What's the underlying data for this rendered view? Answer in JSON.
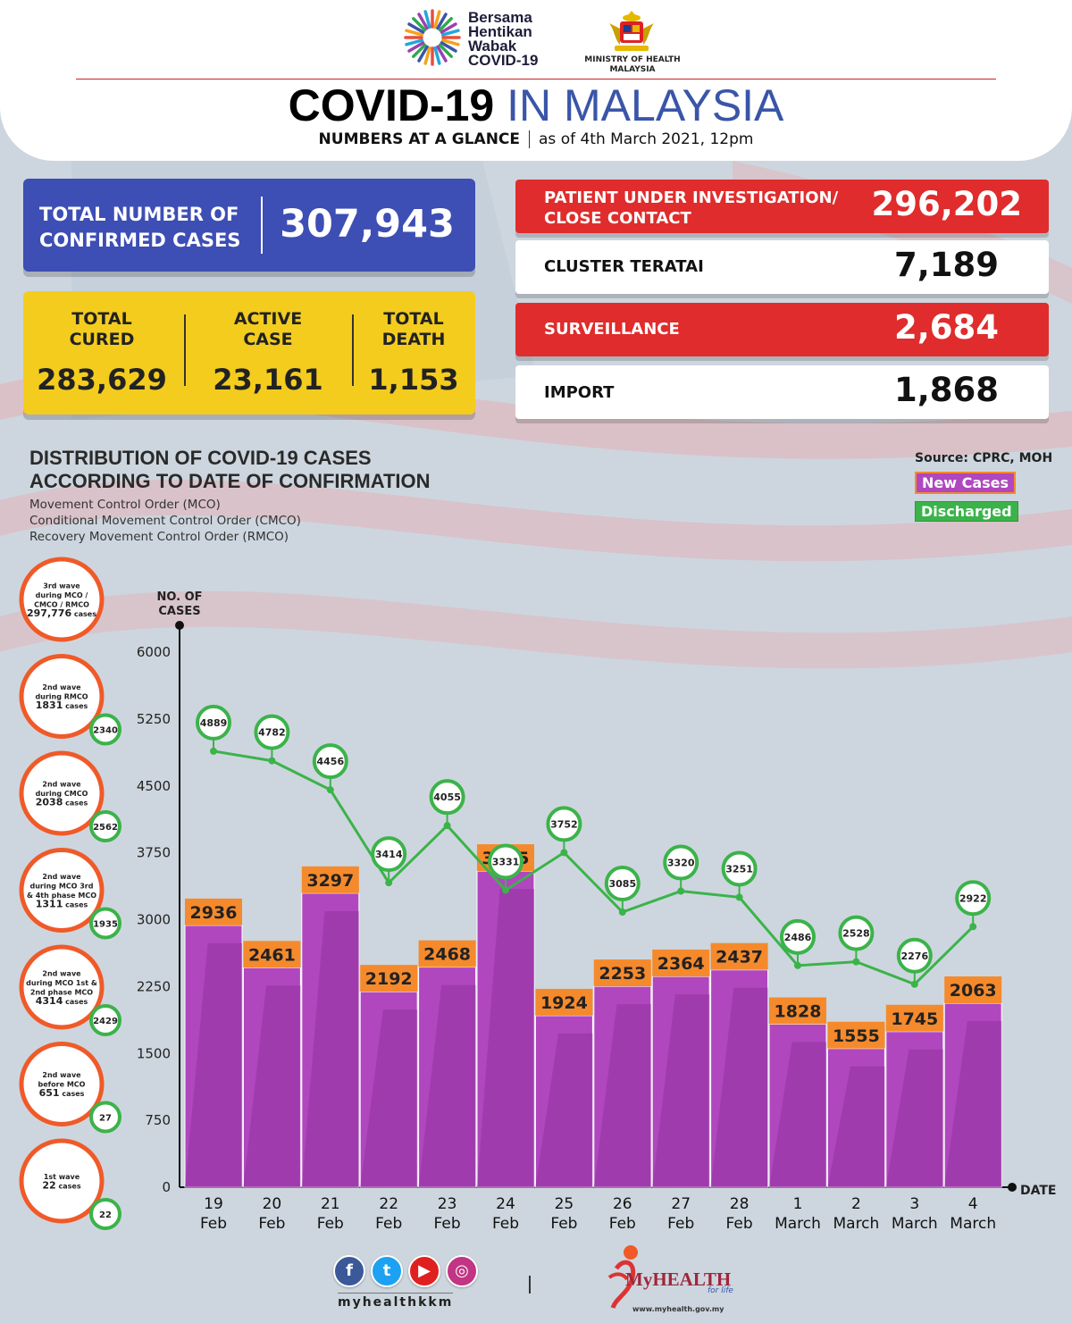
{
  "header": {
    "campaign_lines": [
      "Bersama",
      "Hentikan",
      "Wabak",
      "COVID-19"
    ],
    "ministry": "MINISTRY OF HEALTH MALAYSIA",
    "title_bold": "COVID-19",
    "title_light": "IN MALAYSIA",
    "subtitle_bold": "NUMBERS AT A GLANCE",
    "subtitle_date": "as of 4th March 2021, 12pm"
  },
  "totals": {
    "confirmed_label": "TOTAL NUMBER OF CONFIRMED CASES",
    "confirmed_value": "307,943",
    "cured_label_1": "TOTAL",
    "cured_label_2": "CURED",
    "cured_value": "283,629",
    "active_label_1": "ACTIVE",
    "active_label_2": "CASE",
    "active_value": "23,161",
    "death_label_1": "TOTAL",
    "death_label_2": "DEATH",
    "death_value": "1,153"
  },
  "side_stats": {
    "pui_label_1": "PATIENT UNDER INVESTIGATION/",
    "pui_label_2": "CLOSE CONTACT",
    "pui_value": "296,202",
    "cluster_label": "CLUSTER TERATAI",
    "cluster_value": "7,189",
    "surveillance_label": "SURVEILLANCE",
    "surveillance_value": "2,684",
    "import_label": "IMPORT",
    "import_value": "1,868"
  },
  "distribution": {
    "title_1": "DISTRIBUTION OF COVID-19 CASES",
    "title_2": "ACCORDING TO DATE OF CONFIRMATION",
    "sub_1": "Movement Control Order (MCO)",
    "sub_2": "Conditional Movement Control Order (CMCO)",
    "sub_3": "Recovery Movement Control Order (RMCO)",
    "source": "Source: CPRC, MOH"
  },
  "waves": [
    {
      "lines": [
        "3rd wave",
        "during MCO /",
        "CMCO / RMCO"
      ],
      "count": "297,776",
      "unit": "cases",
      "discharged": ""
    },
    {
      "lines": [
        "2nd wave",
        "during RMCO"
      ],
      "count": "1831",
      "unit": "cases",
      "discharged": "2340"
    },
    {
      "lines": [
        "2nd wave",
        "during CMCO"
      ],
      "count": "2038",
      "unit": "cases",
      "discharged": "2562"
    },
    {
      "lines": [
        "2nd wave",
        "during MCO 3rd",
        "& 4th phase MCO"
      ],
      "count": "1311",
      "unit": "cases",
      "discharged": "1935"
    },
    {
      "lines": [
        "2nd wave",
        "during MCO 1st &",
        "2nd phase MCO"
      ],
      "count": "4314",
      "unit": "cases",
      "discharged": "2429"
    },
    {
      "lines": [
        "2nd wave",
        "before MCO"
      ],
      "count": "651",
      "unit": "cases",
      "discharged": "27"
    },
    {
      "lines": [
        "1st wave"
      ],
      "count": "22",
      "unit": "cases",
      "discharged": "22"
    }
  ],
  "chart_data": {
    "type": "bar",
    "ylabel_1": "NO. OF",
    "ylabel_2": "CASES",
    "xlabel": "DATE",
    "ylim": [
      0,
      6000
    ],
    "yticks": [
      0,
      750,
      1500,
      2250,
      3000,
      3750,
      4500,
      5250,
      6000
    ],
    "categories": [
      [
        "19",
        "Feb"
      ],
      [
        "20",
        "Feb"
      ],
      [
        "21",
        "Feb"
      ],
      [
        "22",
        "Feb"
      ],
      [
        "23",
        "Feb"
      ],
      [
        "24",
        "Feb"
      ],
      [
        "25",
        "Feb"
      ],
      [
        "26",
        "Feb"
      ],
      [
        "27",
        "Feb"
      ],
      [
        "28",
        "Feb"
      ],
      [
        "1",
        "March"
      ],
      [
        "2",
        "March"
      ],
      [
        "3",
        "March"
      ],
      [
        "4",
        "March"
      ]
    ],
    "series": [
      {
        "name": "New Cases",
        "type": "bar",
        "color": "#b047bf",
        "values": [
          2936,
          2461,
          3297,
          2192,
          2468,
          3545,
          1924,
          2253,
          2364,
          2437,
          1828,
          1555,
          1745,
          2063
        ]
      },
      {
        "name": "Discharged",
        "type": "line",
        "color": "#3bb34a",
        "values": [
          4889,
          4782,
          4456,
          3414,
          4055,
          3331,
          3752,
          3085,
          3320,
          3251,
          2486,
          2528,
          2276,
          2922
        ]
      }
    ],
    "legend": "top-right",
    "grid": false
  },
  "footer": {
    "handle": "myhealthkkm",
    "brand": "MyHEALTH",
    "tagline": "for life",
    "url": "www.myhealth.gov.my"
  },
  "colors": {
    "blue": "#3d4eb4",
    "yellow": "#f4cc1e",
    "red": "#e02c2c",
    "bar": "#b047bf",
    "bar_dark": "#8f2f9c",
    "label_orange": "#f58a2c",
    "green": "#3bb34a",
    "wave_orange": "#f05a28"
  }
}
